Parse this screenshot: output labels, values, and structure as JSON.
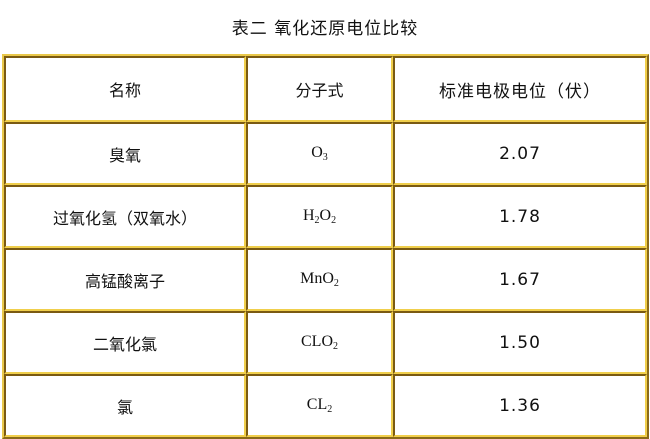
{
  "title": "表二  氧化还原电位比较",
  "table": {
    "headers": [
      "名称",
      "分子式",
      "标准电极电位（伏）"
    ],
    "rows": [
      {
        "name": "臭氧",
        "formula": [
          "O",
          "3",
          ""
        ],
        "potential": "2.07"
      },
      {
        "name": "过氧化氢（双氧水）",
        "formula": [
          "H",
          "2",
          "O",
          "2"
        ],
        "potential": "1.78"
      },
      {
        "name": "高锰酸离子",
        "formula": [
          "MnO",
          "2"
        ],
        "potential": "1.67"
      },
      {
        "name": "二氧化氯",
        "formula": [
          "CLO",
          "2"
        ],
        "potential": "1.50"
      },
      {
        "name": "氯",
        "formula": [
          "CL",
          "2"
        ],
        "potential": "1.36"
      }
    ]
  },
  "colors": {
    "border_light": "#f0cf4c",
    "border_dark": "#7a5a12"
  }
}
